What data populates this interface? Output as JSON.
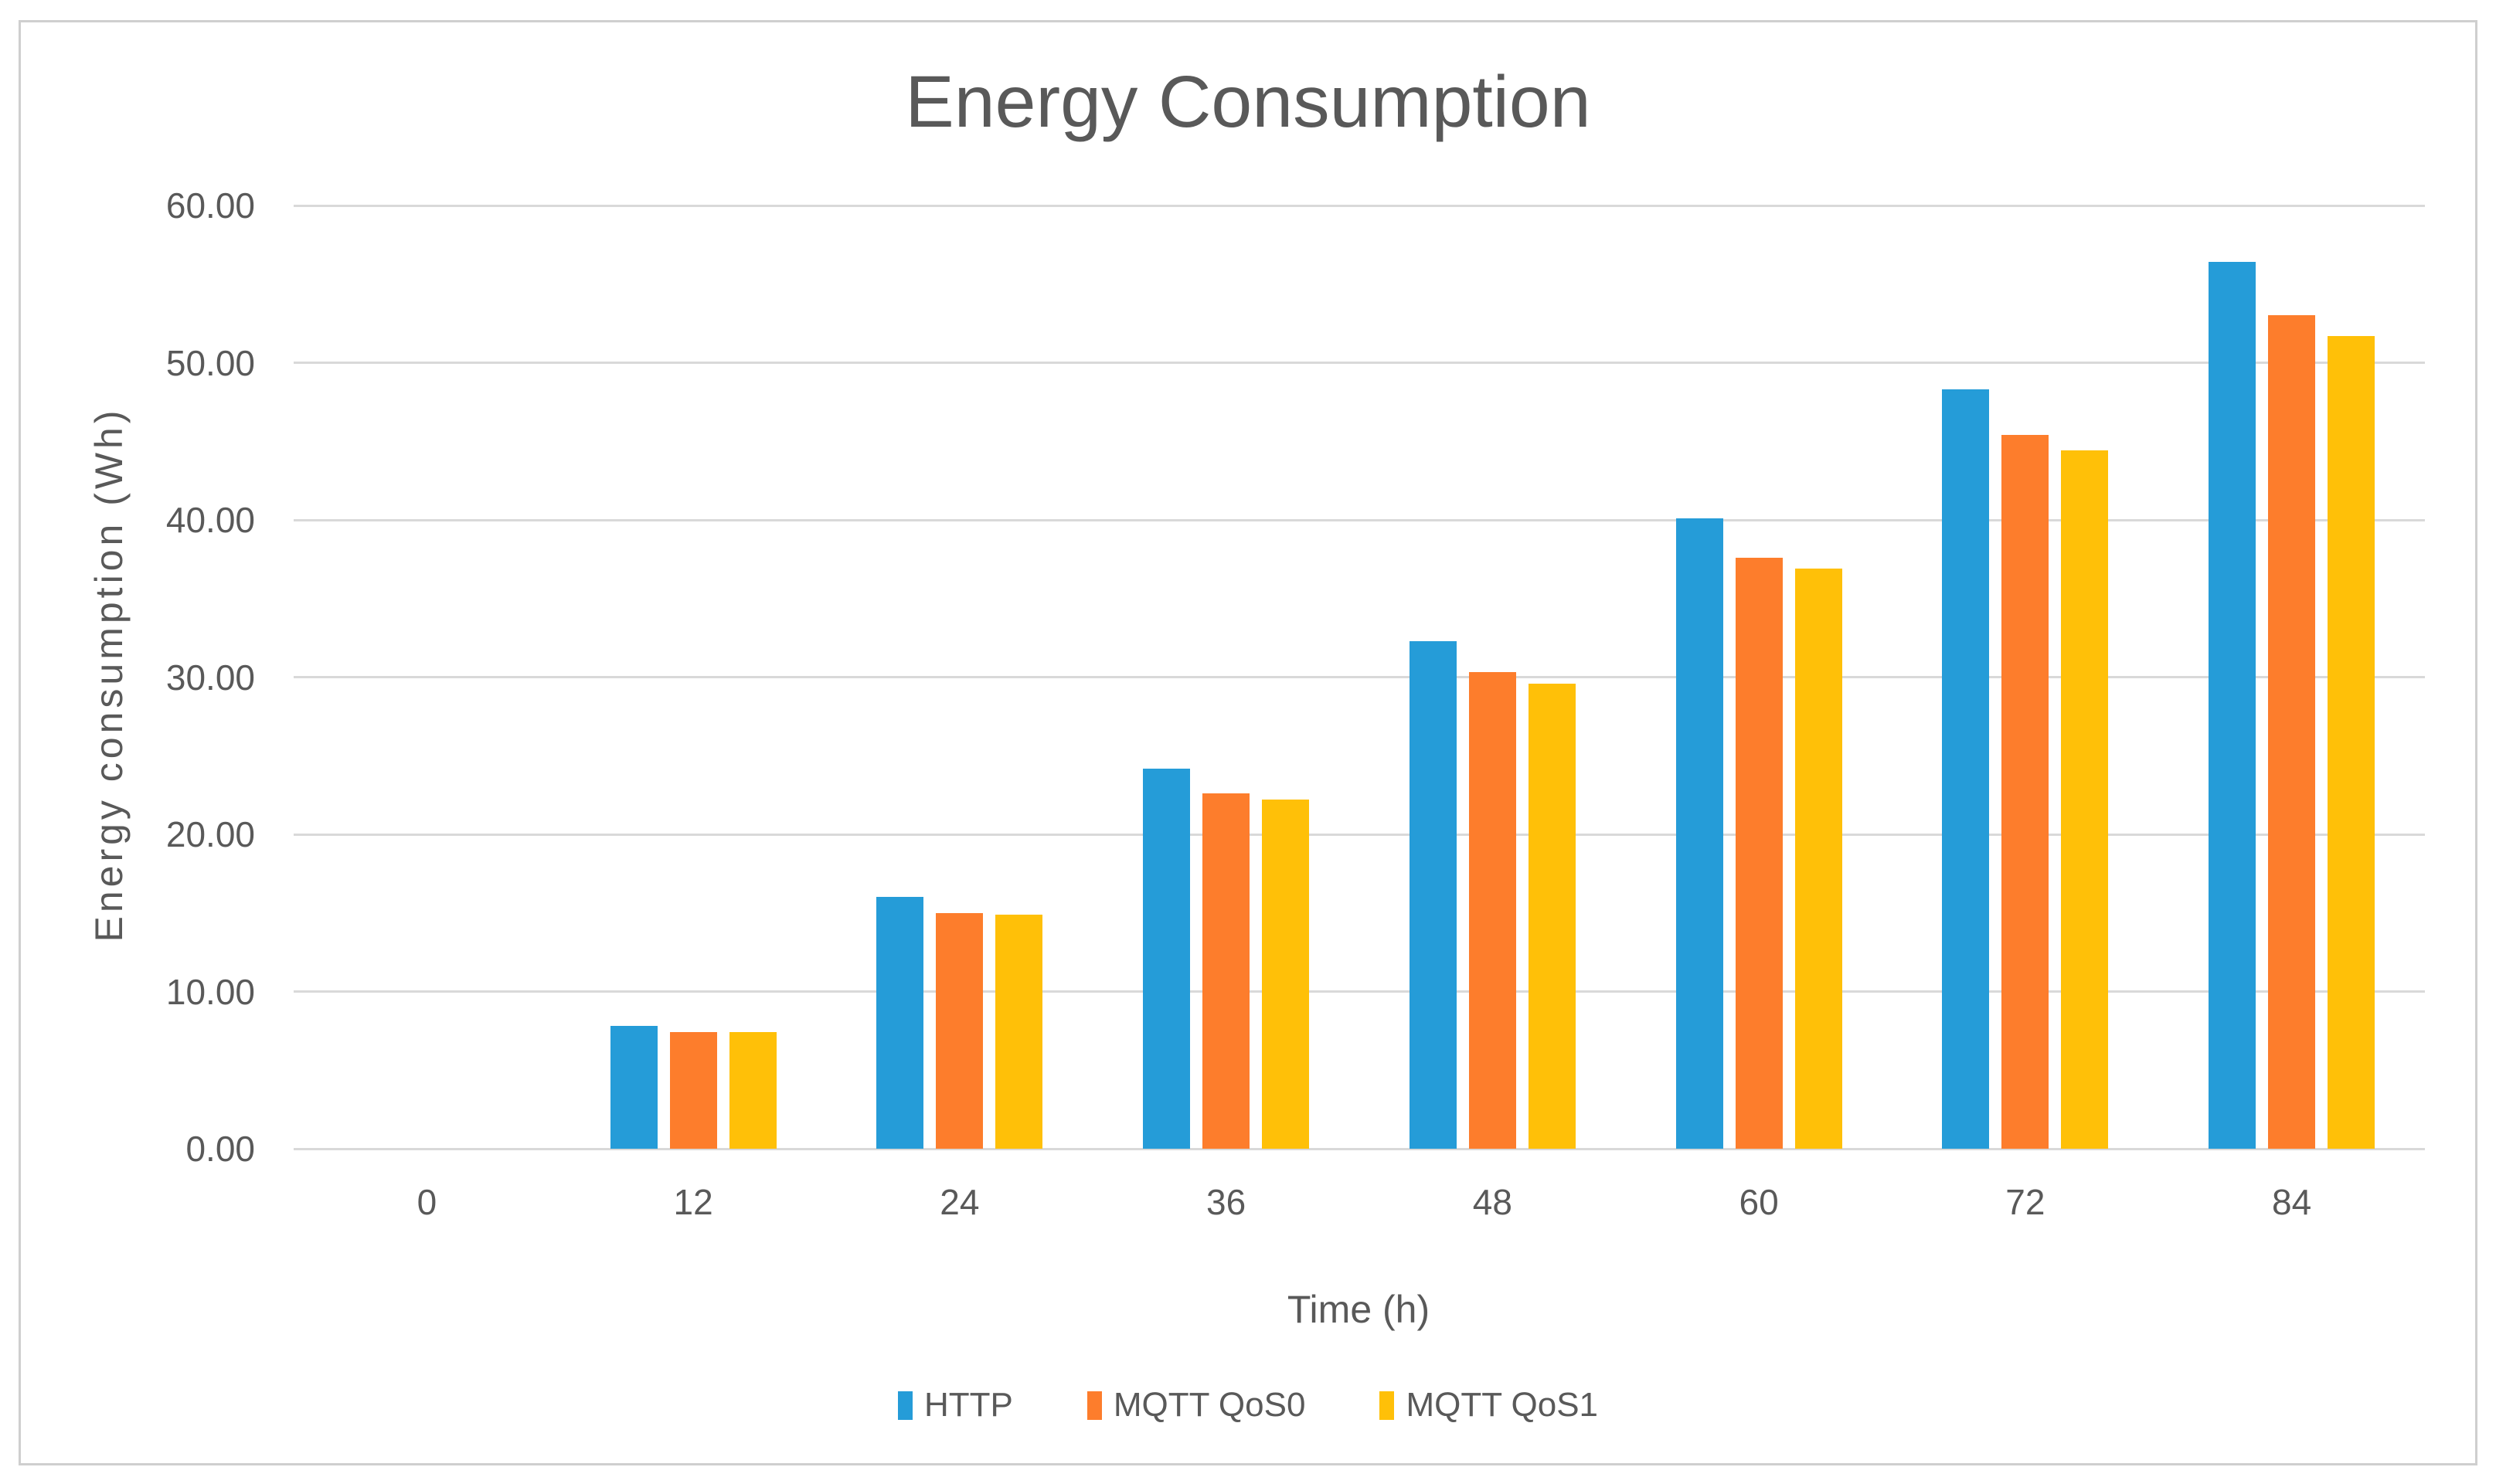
{
  "chart_data": {
    "type": "bar",
    "title": "Energy Consumption",
    "xlabel": "Time (h)",
    "ylabel": "Energy consumption (Wh)",
    "categories": [
      "0",
      "12",
      "24",
      "36",
      "48",
      "60",
      "72",
      "84"
    ],
    "y_tick_labels": [
      "0.00",
      "10.00",
      "20.00",
      "30.00",
      "40.00",
      "50.00",
      "60.00"
    ],
    "ylim": [
      0,
      60
    ],
    "ytick_step": 10,
    "grid": true,
    "legend_position": "bottom",
    "series": [
      {
        "name": "HTTP",
        "color": "#259cd8",
        "values": [
          0,
          7.8,
          16.0,
          24.2,
          32.3,
          40.1,
          48.3,
          56.4
        ]
      },
      {
        "name": "MQTT QoS0",
        "color": "#fd7d2c",
        "values": [
          0,
          7.4,
          15.0,
          22.6,
          30.3,
          37.6,
          45.4,
          53.0
        ]
      },
      {
        "name": "MQTT QoS1",
        "color": "#ffc008",
        "values": [
          0,
          7.4,
          14.9,
          22.2,
          29.6,
          36.9,
          44.4,
          51.7
        ]
      }
    ],
    "colors": {
      "text": "#595959",
      "grid": "#d9d9d9",
      "chart_border": "#cfcfcf",
      "background": "#ffffff"
    }
  }
}
